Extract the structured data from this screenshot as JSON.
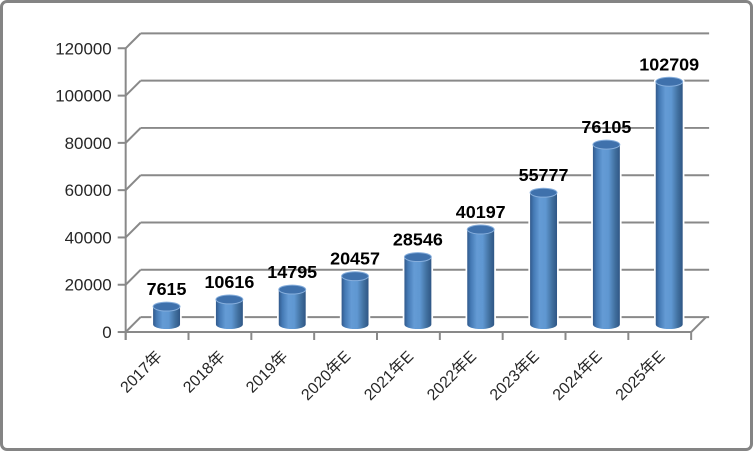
{
  "window": {
    "background": "#FFFFFF",
    "border_color": "#848484"
  },
  "chart_data": {
    "type": "bar",
    "style": "3d-cylinder",
    "title": "",
    "xlabel": "",
    "ylabel": "",
    "categories": [
      "2017年",
      "2018年",
      "2019年",
      "2020年E",
      "2021年E",
      "2022年E",
      "2023年E",
      "2024年E",
      "2025年E"
    ],
    "values": [
      7615,
      10616,
      14795,
      20457,
      28546,
      40197,
      55777,
      76105,
      102709
    ],
    "data_labels": [
      "7615",
      "10616",
      "14795",
      "20457",
      "28546",
      "40197",
      "55777",
      "76105",
      "102709"
    ],
    "yticks": [
      0,
      20000,
      40000,
      60000,
      80000,
      100000,
      120000
    ],
    "ytick_labels": [
      "0",
      "20000",
      "40000",
      "60000",
      "80000",
      "100000",
      "120000"
    ],
    "ylim": [
      0,
      120000
    ],
    "grid": true,
    "legend_position": "none",
    "colors": {
      "bar_gradient_edge": "#31598B",
      "bar_gradient_mid": "#649BD5",
      "bar_gradient_dark_edge": "#2F5685",
      "bar_top_ellipse": "#3F71AC",
      "bar_top_rim": "#86AEDC",
      "bar_halo": "#FFFFFF",
      "gridline": "#898989",
      "axis": "#898989",
      "data_label_text": "#000000",
      "tick_label_text": "#262626",
      "background": "#FFFFFF"
    }
  }
}
